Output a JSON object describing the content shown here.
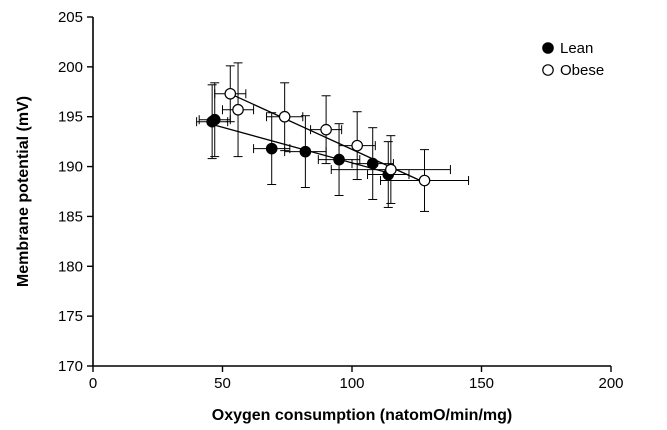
{
  "chart_data": {
    "type": "scatter",
    "title": "",
    "xlabel": "Oxygen consumption (natomO/min/mg)",
    "ylabel": "Membrane potential (mV)",
    "xlim": [
      0,
      200
    ],
    "ylim": [
      170,
      205
    ],
    "xticks": [
      0,
      50,
      100,
      150,
      200
    ],
    "yticks": [
      170,
      175,
      180,
      185,
      190,
      195,
      200,
      205
    ],
    "grid": false,
    "legend_position": "top-right",
    "series": [
      {
        "name": "Lean",
        "marker": "filled-circle",
        "color": "#000000",
        "points": [
          {
            "x": 46,
            "y": 194.5,
            "xerr": 6,
            "yerr": 3.7
          },
          {
            "x": 47,
            "y": 194.7,
            "xerr": 6,
            "yerr": 3.7
          },
          {
            "x": 69,
            "y": 191.8,
            "xerr": 7,
            "yerr": 3.6
          },
          {
            "x": 82,
            "y": 191.5,
            "xerr": 8,
            "yerr": 3.6
          },
          {
            "x": 95,
            "y": 190.7,
            "xerr": 8,
            "yerr": 3.6
          },
          {
            "x": 108,
            "y": 190.3,
            "xerr": 8,
            "yerr": 3.6
          },
          {
            "x": 114,
            "y": 189.2,
            "xerr": 8,
            "yerr": 3.3
          }
        ],
        "trendline": {
          "x": [
            45,
            115
          ],
          "y": [
            194.3,
            189.3
          ]
        }
      },
      {
        "name": "Obese",
        "marker": "open-circle",
        "color": "#000000",
        "points": [
          {
            "x": 53,
            "y": 197.3,
            "xerr": 6,
            "yerr": 2.8
          },
          {
            "x": 56,
            "y": 195.7,
            "xerr": 6,
            "yerr": 4.7
          },
          {
            "x": 74,
            "y": 195.0,
            "xerr": 7,
            "yerr": 3.4
          },
          {
            "x": 90,
            "y": 193.7,
            "xerr": 6,
            "yerr": 3.4
          },
          {
            "x": 102,
            "y": 192.1,
            "xerr": 7,
            "yerr": 3.4
          },
          {
            "x": 115,
            "y": 189.7,
            "xerr": 23,
            "yerr": 3.4
          },
          {
            "x": 128,
            "y": 188.6,
            "xerr": 17,
            "yerr": 3.1
          }
        ],
        "trendline": {
          "x": [
            53,
            128
          ],
          "y": [
            197.3,
            188.4
          ]
        }
      }
    ]
  }
}
